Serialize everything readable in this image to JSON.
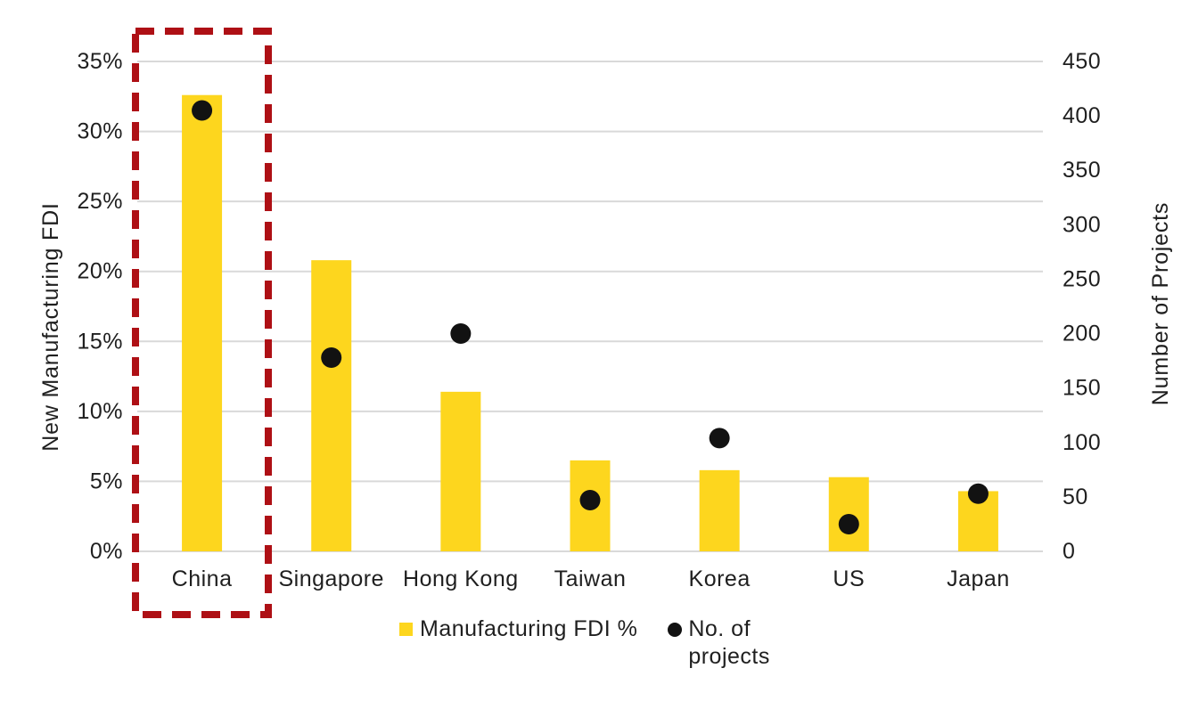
{
  "chart_data": {
    "type": "bar",
    "subtype": "combo bar + scatter with dual y-axes",
    "categories": [
      "China",
      "Singapore",
      "Hong Kong",
      "Taiwan",
      "Korea",
      "US",
      "Japan"
    ],
    "series": [
      {
        "name": "Manufacturing FDI %",
        "type": "bar",
        "axis": "left",
        "unit": "%",
        "values": [
          32.6,
          20.8,
          11.4,
          6.5,
          5.8,
          5.3,
          4.3
        ]
      },
      {
        "name": "No. of projects",
        "type": "scatter",
        "axis": "right",
        "values": [
          405,
          178,
          200,
          47,
          104,
          25,
          53
        ]
      }
    ],
    "left_axis": {
      "title": "New Manufacturing FDI",
      "min": 0,
      "max": 35,
      "tick_labels": [
        "0%",
        "5%",
        "10%",
        "15%",
        "20%",
        "25%",
        "30%",
        "35%"
      ]
    },
    "right_axis": {
      "title": "Number of Projects",
      "min": 0,
      "max": 450,
      "tick_labels": [
        "0",
        "50",
        "100",
        "150",
        "200",
        "250",
        "300",
        "350",
        "400",
        "450"
      ]
    },
    "grid": "horizontal gridlines at every 5% left-axis tick",
    "legend_position": "bottom-center",
    "annotation": {
      "shape": "dashed-rectangle",
      "highlights": "China",
      "color": "#ae1015"
    }
  },
  "legend": {
    "bar_label": "Manufacturing FDI %",
    "dot_label": "No. of projects"
  },
  "colors": {
    "bar": "#fdd61e",
    "dot": "#121212",
    "highlight_box": "#ae1015",
    "gridline": "#d9d9d9",
    "text": "#1f1f1f",
    "background": "#ffffff"
  }
}
